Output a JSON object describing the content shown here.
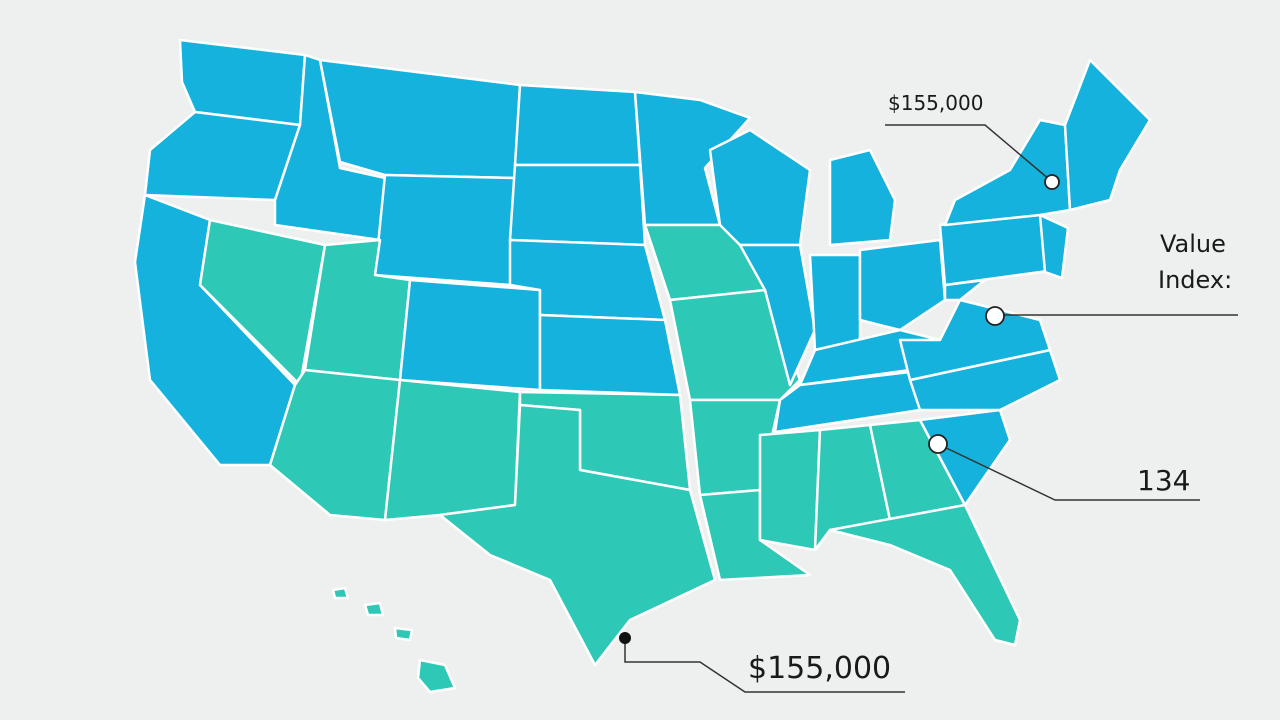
{
  "map": {
    "callouts": [
      {
        "label": "$155,000"
      },
      {
        "label_lines": [
          "Value",
          "Index:"
        ]
      },
      {
        "label": "134"
      },
      {
        "label": "$155,000"
      }
    ]
  }
}
